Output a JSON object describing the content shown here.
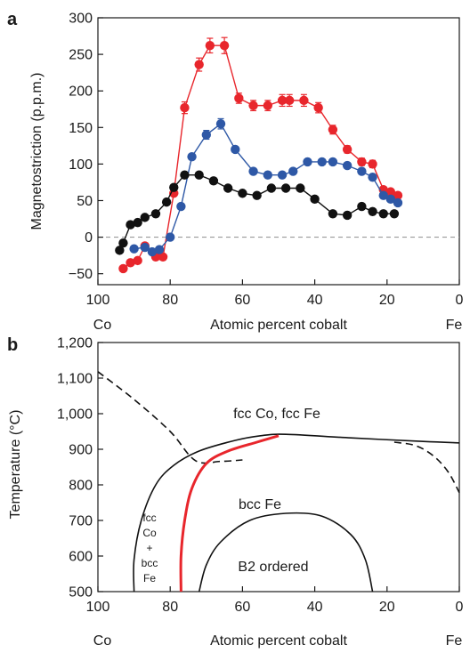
{
  "chart_data": [
    {
      "panel_label": "a",
      "type": "scatter",
      "ylabel": "Magnetostriction (p.p.m.)",
      "xlabel": "Atomic percent cobalt",
      "x_end_labels": {
        "left": "Co",
        "right": "Fe"
      },
      "xlim": [
        100,
        0
      ],
      "ylim": [
        -65,
        300
      ],
      "xticks": [
        100,
        80,
        60,
        40,
        20,
        0
      ],
      "yticks": [
        -50,
        0,
        50,
        100,
        150,
        200,
        250,
        300
      ],
      "ytick_labels": [
        "−50",
        "0",
        "50",
        "100",
        "150",
        "200",
        "250",
        "300"
      ],
      "zero_line": "dashed",
      "series": [
        {
          "color": "#e8262c",
          "error_bars": true,
          "points": [
            [
              93,
              -43
            ],
            [
              91,
              -35
            ],
            [
              89,
              -32
            ],
            [
              87,
              -12
            ],
            [
              84,
              -27
            ],
            [
              82,
              -27
            ],
            [
              79,
              60
            ],
            [
              76,
              177
            ],
            [
              72,
              236
            ],
            [
              69,
              262
            ],
            [
              65,
              262
            ],
            [
              61,
              190
            ],
            [
              57,
              180
            ],
            [
              53,
              180
            ],
            [
              49,
              187
            ],
            [
              47,
              187
            ],
            [
              43,
              187
            ],
            [
              39,
              177
            ],
            [
              35,
              147
            ],
            [
              31,
              120
            ],
            [
              27,
              103
            ],
            [
              24,
              100
            ],
            [
              21,
              65
            ],
            [
              19,
              62
            ],
            [
              17,
              57
            ]
          ],
          "errors": [
            0,
            0,
            0,
            0,
            0,
            0,
            0,
            8,
            9,
            10,
            11,
            7,
            7,
            7,
            8,
            8,
            8,
            7,
            6,
            5,
            5,
            5,
            3,
            3,
            3
          ]
        },
        {
          "color": "#2e58a6",
          "error_bars": true,
          "points": [
            [
              90,
              -16
            ],
            [
              87,
              -14
            ],
            [
              85,
              -20
            ],
            [
              83,
              -17
            ],
            [
              80,
              0
            ],
            [
              77,
              42
            ],
            [
              74,
              110
            ],
            [
              70,
              140
            ],
            [
              66,
              155
            ],
            [
              62,
              120
            ],
            [
              57,
              90
            ],
            [
              53,
              85
            ],
            [
              49,
              85
            ],
            [
              46,
              90
            ],
            [
              42,
              103
            ],
            [
              38,
              103
            ],
            [
              35,
              103
            ],
            [
              31,
              98
            ],
            [
              27,
              90
            ],
            [
              24,
              82
            ],
            [
              21,
              57
            ],
            [
              19,
              52
            ],
            [
              17,
              47
            ]
          ],
          "errors": [
            0,
            0,
            0,
            0,
            0,
            0,
            0,
            6,
            7,
            0,
            0,
            0,
            0,
            0,
            0,
            0,
            0,
            0,
            0,
            0,
            0,
            0,
            0
          ]
        },
        {
          "color": "#111111",
          "error_bars": false,
          "points": [
            [
              94,
              -18
            ],
            [
              93,
              -8
            ],
            [
              91,
              17
            ],
            [
              89,
              20
            ],
            [
              87,
              27
            ],
            [
              84,
              32
            ],
            [
              81,
              48
            ],
            [
              79,
              68
            ],
            [
              76,
              85
            ],
            [
              72,
              85
            ],
            [
              68,
              77
            ],
            [
              64,
              67
            ],
            [
              60,
              60
            ],
            [
              56,
              57
            ],
            [
              52,
              67
            ],
            [
              48,
              67
            ],
            [
              44,
              67
            ],
            [
              40,
              52
            ],
            [
              35,
              32
            ],
            [
              31,
              30
            ],
            [
              27,
              42
            ],
            [
              24,
              35
            ],
            [
              21,
              32
            ],
            [
              18,
              32
            ]
          ]
        }
      ]
    },
    {
      "panel_label": "b",
      "type": "line",
      "subtype": "phase_diagram",
      "ylabel": "Temperature (°C)",
      "xlabel": "Atomic percent cobalt",
      "x_end_labels": {
        "left": "Co",
        "right": "Fe"
      },
      "xlim": [
        100,
        0
      ],
      "ylim": [
        500,
        1200
      ],
      "xticks": [
        100,
        80,
        60,
        40,
        20,
        0
      ],
      "yticks": [
        500,
        600,
        700,
        800,
        900,
        1000,
        1100,
        1200
      ],
      "ytick_labels": [
        "500",
        "600",
        "700",
        "800",
        "900",
        "1,000",
        "1,100",
        "1,200"
      ],
      "regions": {
        "fcc": "fcc Co, fcc Fe",
        "bcc": "bcc Fe",
        "b2": "B2 ordered",
        "two_phase": [
          "fcc",
          "Co",
          "+",
          "bcc",
          "Fe"
        ]
      },
      "curves": [
        {
          "style": "solid",
          "color": "#111111",
          "points": [
            [
              90,
              500
            ],
            [
              90,
              590
            ],
            [
              88,
              700
            ],
            [
              84,
              800
            ],
            [
              79,
              855
            ],
            [
              72,
              895
            ],
            [
              62,
              925
            ],
            [
              55,
              938
            ],
            [
              48,
              942
            ],
            [
              30,
              932
            ],
            [
              10,
              922
            ],
            [
              0,
              918
            ]
          ]
        },
        {
          "style": "dashed",
          "color": "#111111",
          "points": [
            [
              100,
              1118
            ],
            [
              90,
              1040
            ],
            [
              80,
              950
            ],
            [
              73,
              868
            ],
            [
              66,
              866
            ],
            [
              60,
              870
            ]
          ]
        },
        {
          "style": "dashed",
          "color": "#111111",
          "points": [
            [
              18,
              920
            ],
            [
              12,
              910
            ],
            [
              7,
              880
            ],
            [
              3,
              835
            ],
            [
              0,
              778
            ]
          ]
        },
        {
          "style": "solid",
          "color": "#111111",
          "points": [
            [
              72,
              500
            ],
            [
              70,
              575
            ],
            [
              66,
              640
            ],
            [
              58,
              700
            ],
            [
              48,
              720
            ],
            [
              38,
              712
            ],
            [
              30,
              660
            ],
            [
              26,
              590
            ],
            [
              24,
              500
            ]
          ]
        },
        {
          "style": "solid",
          "color": "#e8262c",
          "points": [
            [
              77,
              500
            ],
            [
              77,
              600
            ],
            [
              76,
              700
            ],
            [
              74,
              790
            ],
            [
              70,
              860
            ],
            [
              64,
              895
            ],
            [
              56,
              920
            ],
            [
              50,
              938
            ]
          ]
        }
      ]
    }
  ]
}
